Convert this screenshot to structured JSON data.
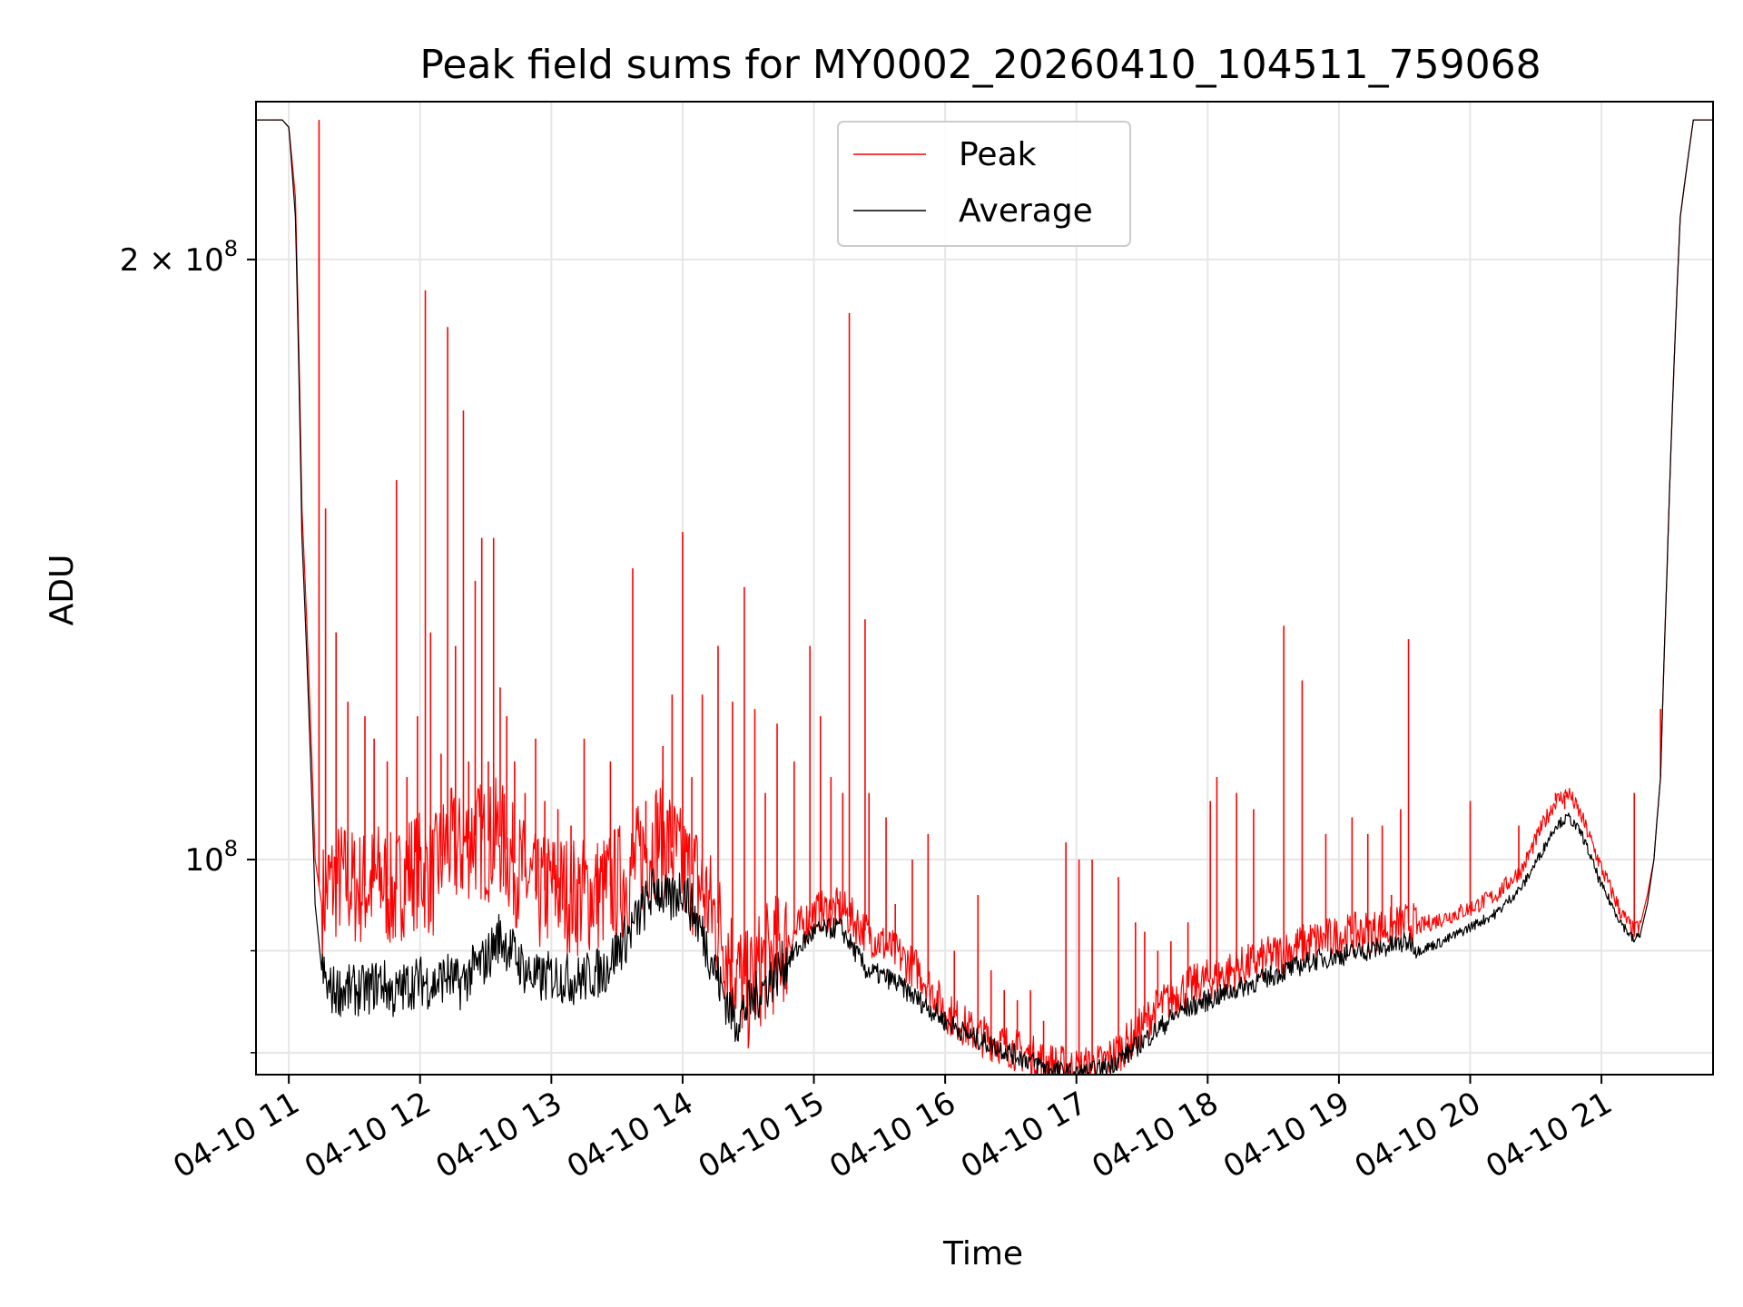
{
  "chart_data": {
    "type": "line",
    "title": "Peak field sums for MY0002_20260410_104511_759068",
    "xlabel": "Time",
    "ylabel": "ADU",
    "yscale": "log",
    "ylim": [
      78000000,
      240000000
    ],
    "xlim": [
      10.75,
      21.85
    ],
    "grid": true,
    "legend_position": "top-center",
    "x_ticks": [
      {
        "value": 11,
        "label": "04-10 11"
      },
      {
        "value": 12,
        "label": "04-10 12"
      },
      {
        "value": 13,
        "label": "04-10 13"
      },
      {
        "value": 14,
        "label": "04-10 14"
      },
      {
        "value": 15,
        "label": "04-10 15"
      },
      {
        "value": 16,
        "label": "04-10 16"
      },
      {
        "value": 17,
        "label": "04-10 17"
      },
      {
        "value": 18,
        "label": "04-10 18"
      },
      {
        "value": 19,
        "label": "04-10 19"
      },
      {
        "value": 20,
        "label": "04-10 20"
      },
      {
        "value": 21,
        "label": "04-10 21"
      }
    ],
    "y_major_ticks": [
      {
        "value": 100000000,
        "base": "10",
        "exp": "8",
        "coef": ""
      },
      {
        "value": 200000000,
        "base": "10",
        "exp": "8",
        "coef": "2 × "
      }
    ],
    "y_minor_ticks": [
      80000000,
      90000000
    ],
    "series": [
      {
        "name": "Peak",
        "color": "#ff0000",
        "x": [
          10.75,
          10.9,
          10.95,
          11.0,
          11.05,
          11.1,
          11.15,
          11.2,
          11.25,
          11.3,
          11.4,
          11.5,
          11.6,
          11.7,
          11.8,
          11.9,
          12.0,
          12.1,
          12.2,
          12.3,
          12.4,
          12.5,
          12.6,
          12.7,
          12.8,
          12.9,
          13.0,
          13.2,
          13.4,
          13.6,
          13.8,
          13.9,
          14.0,
          14.1,
          14.2,
          14.3,
          14.4,
          14.5,
          14.6,
          14.8,
          15.0,
          15.2,
          15.4,
          15.6,
          15.8,
          16.0,
          16.2,
          16.4,
          16.6,
          16.8,
          17.0,
          17.2,
          17.4,
          17.6,
          17.8,
          18.0,
          18.2,
          18.4,
          18.6,
          18.8,
          19.0,
          19.2,
          19.4,
          19.55,
          19.6,
          19.8,
          20.0,
          20.2,
          20.4,
          20.55,
          20.65,
          20.75,
          20.85,
          21.0,
          21.15,
          21.25,
          21.3,
          21.35,
          21.4,
          21.45,
          21.5,
          21.6,
          21.7,
          21.85
        ],
        "y": [
          235000000,
          235000000,
          235000000,
          233000000,
          215000000,
          150000000,
          125000000,
          100000000,
          95000000,
          97000000,
          98000000,
          97000000,
          97000000,
          98000000,
          96000000,
          99000000,
          99000000,
          98000000,
          102000000,
          101000000,
          103000000,
          102000000,
          103000000,
          100000000,
          98000000,
          96000000,
          97000000,
          96000000,
          96500000,
          98500000,
          103000000,
          102000000,
          99000000,
          98000000,
          95000000,
          92000000,
          88000000,
          86000000,
          88500000,
          91000000,
          94000000,
          94500000,
          92000000,
          90000000,
          88000000,
          84000000,
          82000000,
          81000000,
          80000000,
          79000000,
          78500000,
          79000000,
          81000000,
          84000000,
          86000000,
          87000000,
          88000000,
          89000000,
          90000000,
          91000000,
          91500000,
          92000000,
          92500000,
          93000000,
          92500000,
          93500000,
          94500000,
          96000000,
          99000000,
          104000000,
          107000000,
          108000000,
          105000000,
          99000000,
          94000000,
          92000000,
          93000000,
          96000000,
          100000000,
          110000000,
          140000000,
          210000000,
          235000000,
          235000000
        ]
      },
      {
        "name": "Average",
        "color": "#000000",
        "x": [
          10.75,
          10.9,
          10.95,
          11.0,
          11.05,
          11.1,
          11.15,
          11.2,
          11.25,
          11.3,
          11.4,
          11.5,
          11.6,
          11.7,
          11.8,
          11.9,
          12.0,
          12.1,
          12.2,
          12.3,
          12.4,
          12.5,
          12.6,
          12.7,
          12.8,
          12.9,
          13.0,
          13.2,
          13.4,
          13.6,
          13.8,
          13.9,
          14.0,
          14.1,
          14.2,
          14.3,
          14.4,
          14.5,
          14.6,
          14.8,
          15.0,
          15.2,
          15.4,
          15.6,
          15.8,
          16.0,
          16.2,
          16.4,
          16.6,
          16.8,
          17.0,
          17.2,
          17.4,
          17.6,
          17.8,
          18.0,
          18.2,
          18.4,
          18.6,
          18.8,
          19.0,
          19.2,
          19.4,
          19.55,
          19.6,
          19.8,
          20.0,
          20.2,
          20.4,
          20.55,
          20.65,
          20.75,
          20.85,
          21.0,
          21.15,
          21.25,
          21.3,
          21.35,
          21.4,
          21.45,
          21.5,
          21.6,
          21.7,
          21.85
        ],
        "y": [
          235000000,
          235000000,
          235000000,
          233000000,
          210000000,
          145000000,
          120000000,
          95000000,
          88000000,
          86000000,
          86000000,
          86000000,
          86000000,
          87000000,
          85500000,
          86500000,
          87000000,
          86500000,
          87500000,
          86500000,
          88000000,
          89000000,
          91500000,
          90000000,
          88000000,
          87000000,
          87500000,
          87000000,
          88000000,
          92000000,
          97000000,
          95000000,
          97000000,
          93500000,
          90000000,
          86000000,
          83000000,
          84500000,
          86000000,
          89000000,
          92000000,
          92500000,
          88000000,
          87000000,
          85000000,
          83000000,
          81500000,
          80500000,
          79500000,
          78500000,
          78000000,
          78500000,
          80000000,
          82000000,
          84000000,
          85000000,
          86000000,
          87000000,
          88000000,
          89000000,
          89500000,
          90000000,
          90500000,
          91000000,
          90000000,
          91000000,
          92500000,
          94000000,
          97000000,
          101000000,
          104000000,
          105000000,
          103000000,
          97000000,
          93000000,
          91000000,
          92000000,
          95000000,
          100000000,
          110000000,
          140000000,
          210000000,
          235000000,
          235000000
        ]
      }
    ],
    "spikes": {
      "color": "#ff0000",
      "x": [
        11.23,
        11.28,
        11.36,
        11.45,
        11.58,
        11.65,
        11.75,
        11.82,
        11.9,
        11.98,
        12.04,
        12.08,
        12.16,
        12.21,
        12.27,
        12.33,
        12.37,
        12.42,
        12.47,
        12.52,
        12.56,
        12.61,
        12.66,
        12.72,
        12.8,
        12.88,
        12.95,
        13.05,
        13.15,
        13.25,
        13.45,
        13.62,
        13.72,
        13.85,
        13.92,
        14.0,
        14.07,
        14.15,
        14.27,
        14.38,
        14.47,
        14.55,
        14.63,
        14.72,
        14.85,
        14.97,
        15.05,
        15.13,
        15.22,
        15.27,
        15.39,
        15.42,
        15.55,
        15.62,
        15.75,
        15.87,
        16.07,
        16.25,
        16.35,
        16.45,
        16.55,
        16.65,
        16.75,
        16.92,
        17.02,
        17.12,
        17.32,
        17.45,
        17.52,
        17.62,
        17.72,
        17.85,
        18.02,
        18.07,
        18.22,
        18.35,
        18.58,
        18.72,
        18.9,
        19.1,
        19.22,
        19.33,
        19.4,
        19.47,
        19.53,
        20.0,
        20.37,
        20.65,
        20.72,
        21.25,
        21.45
      ],
      "y": [
        235000000,
        150000000,
        130000000,
        120000000,
        118000000,
        115000000,
        112000000,
        155000000,
        110000000,
        118000000,
        193000000,
        130000000,
        113000000,
        185000000,
        128000000,
        168000000,
        112000000,
        138000000,
        145000000,
        112000000,
        145000000,
        122000000,
        118000000,
        112000000,
        108000000,
        115000000,
        107000000,
        106000000,
        104000000,
        115000000,
        112000000,
        140000000,
        107000000,
        114000000,
        121000000,
        146000000,
        110000000,
        121000000,
        128000000,
        120000000,
        137000000,
        119000000,
        108000000,
        117000000,
        112000000,
        128000000,
        118000000,
        110000000,
        108000000,
        188000000,
        132000000,
        108000000,
        105000000,
        95000000,
        100000000,
        103000000,
        90000000,
        96000000,
        88000000,
        86000000,
        85000000,
        86000000,
        83000000,
        102000000,
        100000000,
        100000000,
        98000000,
        93000000,
        92000000,
        90000000,
        91000000,
        93000000,
        107000000,
        110000000,
        108000000,
        106000000,
        131000000,
        123000000,
        103000000,
        105000000,
        103000000,
        104000000,
        96000000,
        106000000,
        129000000,
        107000000,
        104000000,
        108000000,
        106000000,
        108000000,
        119000000
      ]
    }
  }
}
